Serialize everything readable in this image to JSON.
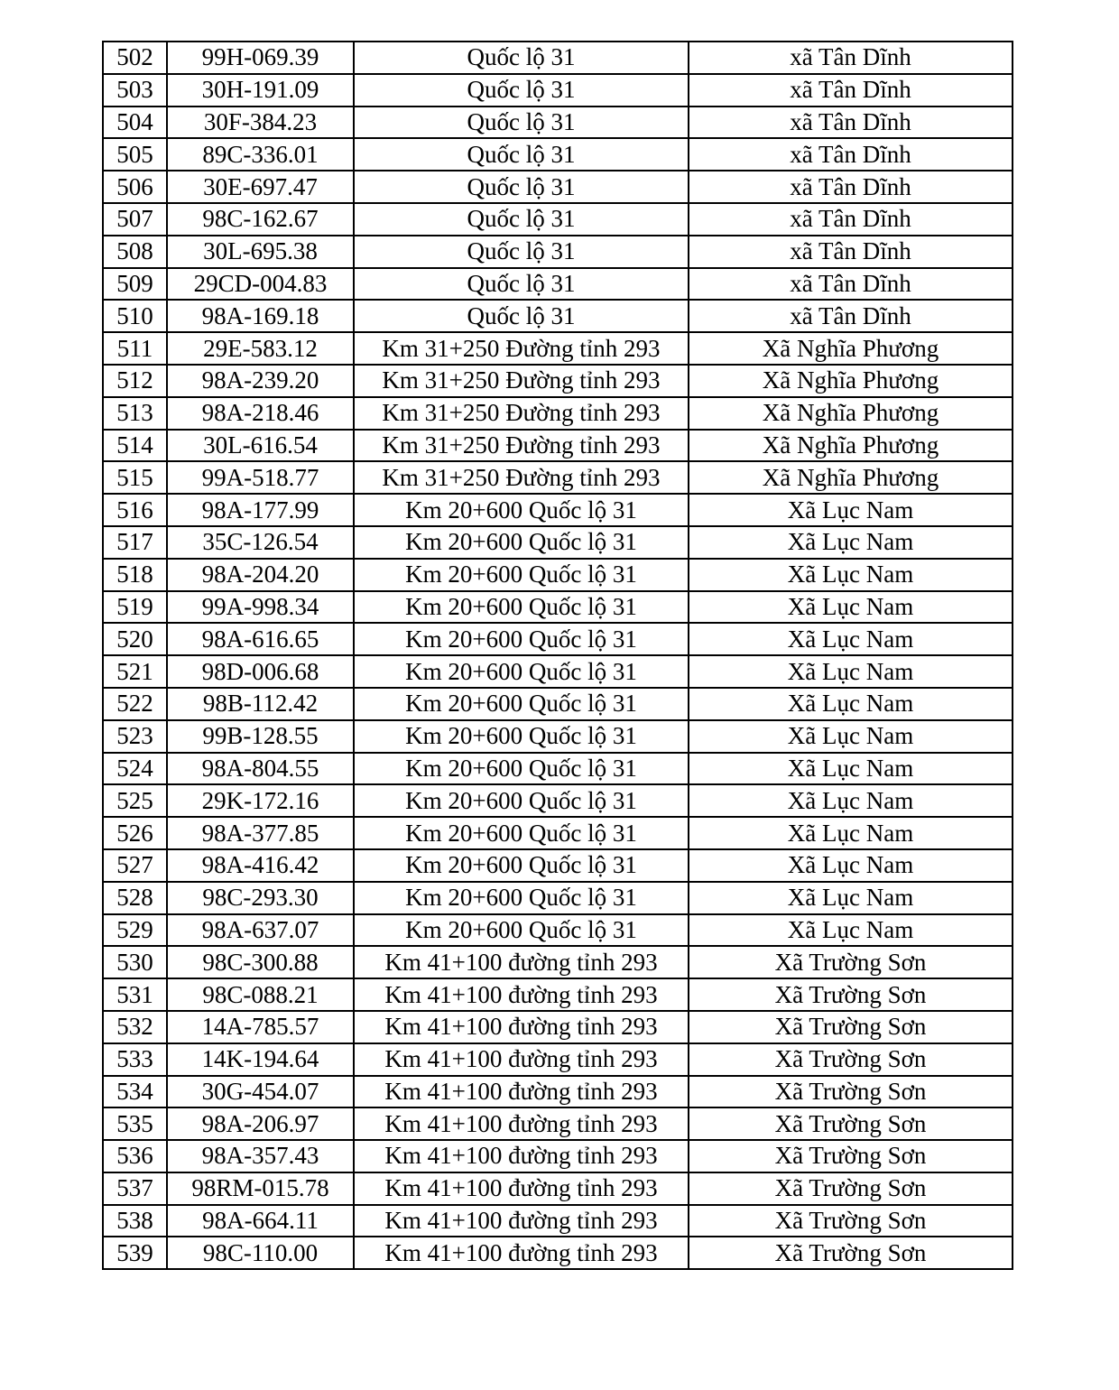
{
  "table": {
    "rows": [
      [
        "502",
        "99H-069.39",
        "Quốc lộ 31",
        "xã Tân Dĩnh"
      ],
      [
        "503",
        "30H-191.09",
        "Quốc lộ 31",
        "xã Tân Dĩnh"
      ],
      [
        "504",
        "30F-384.23",
        "Quốc lộ 31",
        "xã Tân Dĩnh"
      ],
      [
        "505",
        "89C-336.01",
        "Quốc lộ 31",
        "xã Tân Dĩnh"
      ],
      [
        "506",
        "30E-697.47",
        "Quốc lộ 31",
        "xã Tân Dĩnh"
      ],
      [
        "507",
        "98C-162.67",
        "Quốc lộ 31",
        "xã Tân Dĩnh"
      ],
      [
        "508",
        "30L-695.38",
        "Quốc lộ 31",
        "xã Tân Dĩnh"
      ],
      [
        "509",
        "29CD-004.83",
        "Quốc lộ 31",
        "xã Tân Dĩnh"
      ],
      [
        "510",
        "98A-169.18",
        "Quốc lộ 31",
        "xã Tân Dĩnh"
      ],
      [
        "511",
        "29E-583.12",
        "Km 31+250 Đường tỉnh 293",
        "Xã Nghĩa Phương"
      ],
      [
        "512",
        "98A-239.20",
        "Km 31+250 Đường tỉnh 293",
        "Xã Nghĩa Phương"
      ],
      [
        "513",
        "98A-218.46",
        "Km 31+250 Đường tỉnh 293",
        "Xã Nghĩa Phương"
      ],
      [
        "514",
        "30L-616.54",
        "Km 31+250 Đường tỉnh 293",
        "Xã Nghĩa Phương"
      ],
      [
        "515",
        "99A-518.77",
        "Km 31+250 Đường tỉnh 293",
        "Xã Nghĩa Phương"
      ],
      [
        "516",
        "98A-177.99",
        "Km 20+600 Quốc lộ 31",
        "Xã Lục Nam"
      ],
      [
        "517",
        "35C-126.54",
        "Km 20+600 Quốc lộ 31",
        "Xã Lục Nam"
      ],
      [
        "518",
        "98A-204.20",
        "Km 20+600 Quốc lộ 31",
        "Xã Lục Nam"
      ],
      [
        "519",
        "99A-998.34",
        "Km 20+600 Quốc lộ 31",
        "Xã Lục Nam"
      ],
      [
        "520",
        "98A-616.65",
        "Km 20+600 Quốc lộ 31",
        "Xã Lục Nam"
      ],
      [
        "521",
        "98D-006.68",
        "Km 20+600 Quốc lộ 31",
        "Xã Lục Nam"
      ],
      [
        "522",
        "98B-112.42",
        "Km 20+600 Quốc lộ 31",
        "Xã Lục Nam"
      ],
      [
        "523",
        "99B-128.55",
        "Km 20+600 Quốc lộ 31",
        "Xã Lục Nam"
      ],
      [
        "524",
        "98A-804.55",
        "Km 20+600 Quốc lộ 31",
        "Xã Lục Nam"
      ],
      [
        "525",
        "29K-172.16",
        "Km 20+600 Quốc lộ 31",
        "Xã Lục Nam"
      ],
      [
        "526",
        "98A-377.85",
        "Km 20+600 Quốc lộ 31",
        "Xã Lục Nam"
      ],
      [
        "527",
        "98A-416.42",
        "Km 20+600 Quốc lộ 31",
        "Xã Lục Nam"
      ],
      [
        "528",
        "98C-293.30",
        "Km 20+600 Quốc lộ 31",
        "Xã Lục Nam"
      ],
      [
        "529",
        "98A-637.07",
        "Km 20+600 Quốc lộ 31",
        "Xã Lục Nam"
      ],
      [
        "530",
        "98C-300.88",
        "Km 41+100 đường tỉnh 293",
        "Xã Trường Sơn"
      ],
      [
        "531",
        "98C-088.21",
        "Km 41+100 đường tỉnh 293",
        "Xã Trường Sơn"
      ],
      [
        "532",
        "14A-785.57",
        "Km 41+100 đường tỉnh 293",
        "Xã Trường Sơn"
      ],
      [
        "533",
        "14K-194.64",
        "Km 41+100 đường tỉnh 293",
        "Xã Trường Sơn"
      ],
      [
        "534",
        "30G-454.07",
        "Km 41+100 đường tỉnh 293",
        "Xã Trường Sơn"
      ],
      [
        "535",
        "98A-206.97",
        "Km 41+100 đường tỉnh 293",
        "Xã Trường Sơn"
      ],
      [
        "536",
        "98A-357.43",
        "Km 41+100 đường tỉnh 293",
        "Xã Trường Sơn"
      ],
      [
        "537",
        "98RM-015.78",
        "Km 41+100 đường tỉnh 293",
        "Xã Trường Sơn"
      ],
      [
        "538",
        "98A-664.11",
        "Km 41+100 đường tỉnh 293",
        "Xã Trường Sơn"
      ],
      [
        "539",
        "98C-110.00",
        "Km 41+100 đường tỉnh 293",
        "Xã Trường Sơn"
      ]
    ]
  }
}
